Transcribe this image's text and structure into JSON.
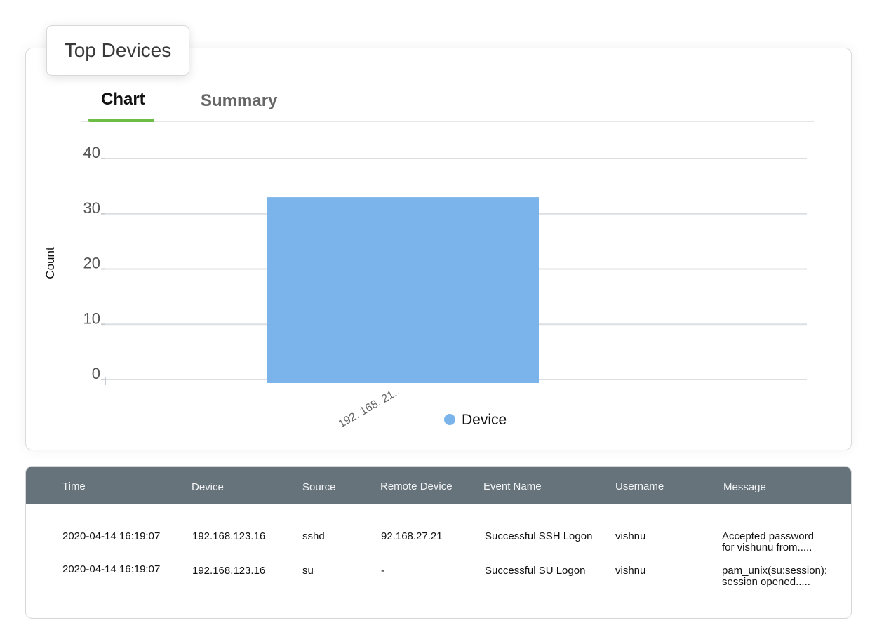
{
  "widget": {
    "title": "Top Devices"
  },
  "tabs": [
    {
      "label": "Chart",
      "active": true
    },
    {
      "label": "Summary",
      "active": false
    }
  ],
  "chart_data": {
    "type": "bar",
    "categories": [
      "192. 168. 21.."
    ],
    "series": [
      {
        "name": "Device",
        "values": [
          33
        ]
      }
    ],
    "ylabel": "Count",
    "xlabel": "",
    "ylim": [
      0,
      40
    ],
    "yticks": [
      0,
      10,
      20,
      30,
      40
    ],
    "grid": true,
    "legend": "bottom-center",
    "color": "#7ab4ea"
  },
  "table": {
    "columns": [
      "Time",
      "Device",
      "Source",
      "Remote Device",
      "Event Name",
      "Username",
      "Message"
    ],
    "rows": [
      [
        "2020-04-14 16:19:07",
        "192.168.123.16",
        "sshd",
        "92.168.27.21",
        "Successful SSH Logon",
        "vishnu",
        "Accepted password\nfor vishunu from....."
      ],
      [
        "2020-04-14 16:19:07",
        "192.168.123.16",
        "su",
        "-",
        "Successful SU Logon",
        "vishnu",
        "pam_unix(su:session):\nsession opened....."
      ]
    ]
  },
  "colors": {
    "accent": "#6cbd45",
    "header_bg": "#66737a",
    "bar": "#7ab4ea"
  }
}
